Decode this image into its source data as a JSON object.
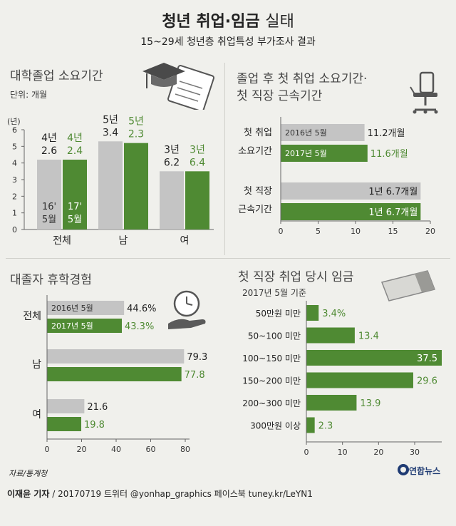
{
  "header": {
    "title_bold": "청년 취업·임금",
    "title_light": "실태",
    "subtitle": "15~29세 청년층 취업특성 부가조사 결과"
  },
  "colors": {
    "gray": "#c4c4c4",
    "green": "#4f8a33",
    "green_text": "#4f8a33",
    "bg": "#f0f0ec"
  },
  "icons": [
    "graduation-cap-icon",
    "diploma-icon",
    "office-chair-icon",
    "clock-in-hand-icon",
    "envelope-icon"
  ],
  "footer": {
    "source": "자료/통계청",
    "reporter": "이재윤 기자",
    "date_social": "/ 20170719  트위터 @yonhap_graphics  페이스북 tuney.kr/LeYN1",
    "logo": "연합뉴스"
  },
  "chart_data": [
    {
      "type": "bar",
      "title": "대학졸업 소요기간",
      "unit_label": "단위: 개월",
      "ylabel": "(년)",
      "ylim": [
        0,
        6
      ],
      "yticks": [
        0,
        1,
        2,
        3,
        4,
        5,
        6
      ],
      "categories": [
        "전체",
        "남",
        "여"
      ],
      "series": [
        {
          "name": "16' 5월",
          "name_line1": "16'",
          "name_line2": "5월",
          "values": [
            4.2,
            5.3,
            3.5
          ],
          "labels": [
            [
              "4년",
              "2.6"
            ],
            [
              "5년",
              "3.4"
            ],
            [
              "3년",
              "6.2"
            ]
          ]
        },
        {
          "name": "17' 5월",
          "name_line1": "17'",
          "name_line2": "5월",
          "values": [
            4.2,
            5.2,
            3.5
          ],
          "labels": [
            [
              "4년",
              "2.4"
            ],
            [
              "5년",
              "2.3"
            ],
            [
              "3년",
              "6.4"
            ]
          ]
        }
      ]
    },
    {
      "type": "bar",
      "orientation": "horizontal",
      "title_line1": "졸업 후 첫 취업 소요기간·",
      "title_line2": "첫 직장 근속기간",
      "categories": [
        [
          "첫 취업",
          "소요기간"
        ],
        [
          "첫 직장",
          "근속기간"
        ]
      ],
      "xlim": [
        0,
        20
      ],
      "xticks": [
        0,
        5,
        10,
        15,
        20
      ],
      "series": [
        {
          "name": "2016년 5월",
          "values": [
            11.2,
            18.7
          ],
          "labels": [
            "11.2개월",
            "1년 6.7개월"
          ]
        },
        {
          "name": "2017년 5월",
          "values": [
            11.6,
            18.7
          ],
          "labels": [
            "11.6개월",
            "1년 6.7개월"
          ]
        }
      ]
    },
    {
      "type": "bar",
      "orientation": "horizontal",
      "title": "대졸자 휴학경험",
      "categories": [
        "전체",
        "남",
        "여"
      ],
      "xlim": [
        0,
        80
      ],
      "xticks": [
        0,
        20,
        40,
        60,
        80
      ],
      "series": [
        {
          "name": "2016년 5월",
          "values": [
            44.6,
            79.3,
            21.6
          ],
          "labels": [
            "44.6%",
            "79.3",
            "21.6"
          ]
        },
        {
          "name": "2017년 5월",
          "values": [
            43.3,
            77.8,
            19.8
          ],
          "labels": [
            "43.3%",
            "77.8",
            "19.8"
          ]
        }
      ]
    },
    {
      "type": "bar",
      "orientation": "horizontal",
      "title": "첫 직장 취업 당시 임금",
      "note": "2017년 5월 기준",
      "categories": [
        "50만원 미만",
        "50~100 미만",
        "100~150 미만",
        "150~200 미만",
        "200~300 미만",
        "300만원 이상"
      ],
      "xlim": [
        0,
        37.5
      ],
      "xticks": [
        0,
        10,
        20,
        30
      ],
      "values": [
        3.4,
        13.4,
        37.5,
        29.6,
        13.9,
        2.3
      ],
      "labels": [
        "3.4%",
        "13.4",
        "37.5",
        "29.6",
        "13.9",
        "2.3"
      ]
    }
  ]
}
